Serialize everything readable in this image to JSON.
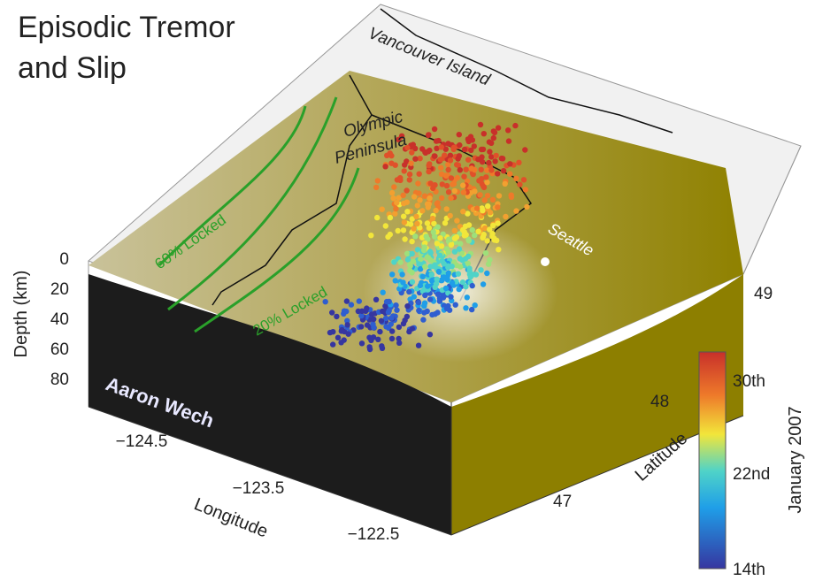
{
  "title": [
    "Episodic Tremor",
    "and Slip"
  ],
  "labels": {
    "vancouver": "Vancouver Island",
    "olympic": [
      "Olympic",
      "Peninsula"
    ],
    "seattle": "Seattle",
    "locked60": "60% Locked",
    "locked20": "20% Locked",
    "credit": "Aaron Wech"
  },
  "depth_axis": {
    "label": "Depth (km)",
    "ticks": [
      "0",
      "20",
      "40",
      "60",
      "80"
    ]
  },
  "longitude_axis": {
    "label": "Longitude",
    "ticks": [
      "−124.5",
      "−123.5",
      "−122.5"
    ]
  },
  "latitude_axis": {
    "label": "Latitude",
    "ticks": [
      "49",
      "48",
      "47"
    ]
  },
  "colorbar": {
    "label": "January 2007",
    "ticks": [
      "30th",
      "22nd",
      "14th"
    ]
  }
}
